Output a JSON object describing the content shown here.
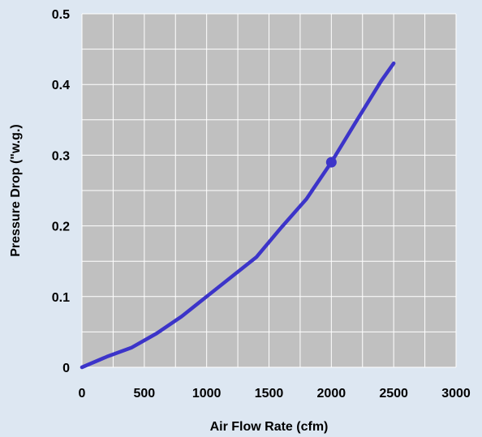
{
  "chart_data": {
    "type": "line",
    "title": "",
    "xlabel": "Air Flow Rate (cfm)",
    "ylabel": "Pressure Drop (\"w.g.)",
    "xlim": [
      0,
      3000
    ],
    "ylim": [
      0,
      0.5
    ],
    "xticks": [
      0,
      500,
      1000,
      1500,
      2000,
      2500,
      3000
    ],
    "xtick_labels": [
      "0",
      "500",
      "1000",
      "1500",
      "2000",
      "2500",
      "3000"
    ],
    "yticks": [
      0,
      0.1,
      0.2,
      0.3,
      0.4,
      0.5
    ],
    "ytick_labels": [
      "0",
      "0.1",
      "0.2",
      "0.3",
      "0.4",
      "0.5"
    ],
    "x_minor_step": 250,
    "y_minor_step": 0.05,
    "grid": true,
    "legend": "none",
    "series": [
      {
        "color": "#3c34c9",
        "x": [
          0,
          200,
          400,
          600,
          800,
          1000,
          1200,
          1400,
          1600,
          1800,
          2000,
          2200,
          2400,
          2500
        ],
        "y": [
          0,
          0.015,
          0.028,
          0.048,
          0.072,
          0.1,
          0.128,
          0.156,
          0.198,
          0.238,
          0.29,
          0.348,
          0.405,
          0.43
        ]
      }
    ],
    "markers": [
      {
        "x": 2000,
        "y": 0.29,
        "color": "#3c34c9"
      }
    ],
    "plot_background": "#c0c0c0",
    "grid_color": "#ffffff",
    "page_background": "#dde7f2"
  }
}
